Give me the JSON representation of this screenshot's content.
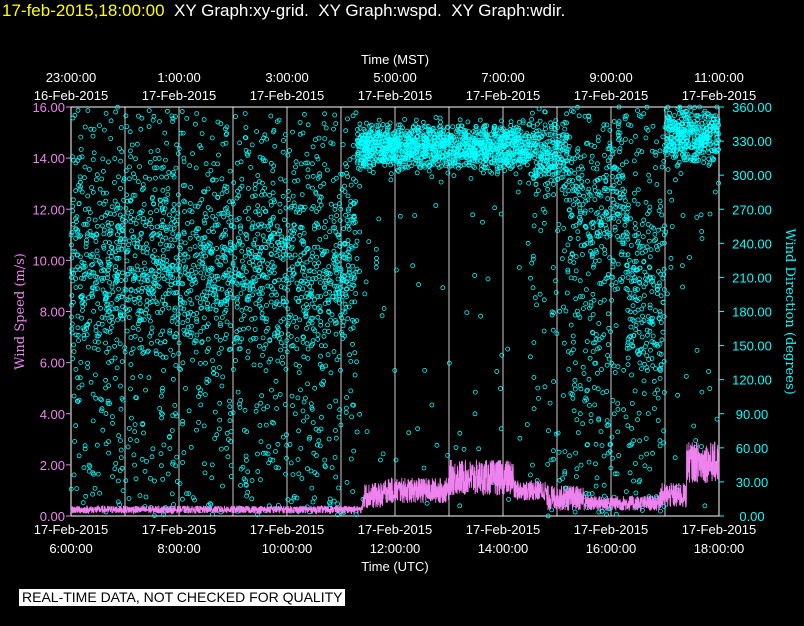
{
  "header": {
    "timestamp": "17-feb-2015,18:00:00",
    "graphs": "  XY Graph:xy-grid.  XY Graph:wspd.  XY Graph:wdir."
  },
  "colors": {
    "background": "#000000",
    "wspd": "#ee82ee",
    "wdir": "#00ffff",
    "text": "#ffffff",
    "timestamp": "#ffff00"
  },
  "footer": {
    "quality_notice": "REAL-TIME DATA, NOT CHECKED FOR QUALITY"
  },
  "chart_data": {
    "type": "scatter",
    "top_axis_title": "Time (MST)",
    "bottom_axis_title": "Time (UTC)",
    "ylabel_left": "Wind Speed (m/s)",
    "ylabel_right": "Wind Direction (degrees)",
    "x_range_utc_hours": [
      6,
      18
    ],
    "ylim_left": [
      0,
      16
    ],
    "ylim_right": [
      0,
      360
    ],
    "left_ticks": [
      "0.00",
      "2.00",
      "4.00",
      "6.00",
      "8.00",
      "10.00",
      "12.00",
      "14.00",
      "16.00"
    ],
    "right_ticks": [
      "0.00",
      "30.00",
      "60.00",
      "90.00",
      "120.00",
      "150.00",
      "180.00",
      "210.00",
      "240.00",
      "270.00",
      "300.00",
      "330.00",
      "360.00"
    ],
    "bottom_ticks": [
      {
        "date": "17-Feb-2015",
        "time": "6:00:00"
      },
      {
        "date": "17-Feb-2015",
        "time": "8:00:00"
      },
      {
        "date": "17-Feb-2015",
        "time": "10:00:00"
      },
      {
        "date": "17-Feb-2015",
        "time": "12:00:00"
      },
      {
        "date": "17-Feb-2015",
        "time": "14:00:00"
      },
      {
        "date": "17-Feb-2015",
        "time": "16:00:00"
      },
      {
        "date": "17-Feb-2015",
        "time": "18:00:00"
      }
    ],
    "top_ticks": [
      {
        "time": "23:00:00",
        "date": "16-Feb-2015"
      },
      {
        "time": "1:00:00",
        "date": "17-Feb-2015"
      },
      {
        "time": "3:00:00",
        "date": "17-Feb-2015"
      },
      {
        "time": "5:00:00",
        "date": "17-Feb-2015"
      },
      {
        "time": "7:00:00",
        "date": "17-Feb-2015"
      },
      {
        "time": "9:00:00",
        "date": "17-Feb-2015"
      },
      {
        "time": "11:00:00",
        "date": "17-Feb-2015"
      }
    ],
    "vertical_grid": true,
    "series": [
      {
        "key": "wspd",
        "axis": "left",
        "style": "line",
        "segments": [
          {
            "t": [
              6.0,
              11.4
            ],
            "mean": 0.25,
            "spread": 0.15
          },
          {
            "t": [
              11.4,
              11.8
            ],
            "mean": 0.8,
            "spread": 0.5
          },
          {
            "t": [
              11.8,
              13.0
            ],
            "mean": 1.0,
            "spread": 0.5
          },
          {
            "t": [
              13.0,
              14.2
            ],
            "mean": 1.5,
            "spread": 0.7
          },
          {
            "t": [
              14.2,
              14.8
            ],
            "mean": 1.0,
            "spread": 0.4
          },
          {
            "t": [
              14.8,
              15.5
            ],
            "mean": 0.7,
            "spread": 0.5
          },
          {
            "t": [
              15.5,
              16.9
            ],
            "mean": 0.5,
            "spread": 0.3
          },
          {
            "t": [
              16.9,
              17.4
            ],
            "mean": 0.8,
            "spread": 0.5
          },
          {
            "t": [
              17.4,
              18.0
            ],
            "mean": 2.1,
            "spread": 0.8
          }
        ]
      },
      {
        "key": "wdir",
        "axis": "right",
        "style": "circle",
        "segments": [
          {
            "t": [
              6.0,
              11.3
            ],
            "mean": 220,
            "spread": 60,
            "scatter": 0.45
          },
          {
            "t": [
              11.3,
              14.5
            ],
            "mean": 325,
            "spread": 15,
            "scatter": 0.05
          },
          {
            "t": [
              14.5,
              15.2
            ],
            "mean": 320,
            "spread": 25,
            "scatter": 0.25
          },
          {
            "t": [
              15.2,
              16.3
            ],
            "mean": 270,
            "spread": 60,
            "scatter": 0.5
          },
          {
            "t": [
              16.3,
              17.0
            ],
            "mean": 200,
            "spread": 60,
            "scatter": 0.5
          },
          {
            "t": [
              17.0,
              18.0
            ],
            "mean": 335,
            "spread": 18,
            "scatter": 0.1
          }
        ]
      }
    ]
  }
}
